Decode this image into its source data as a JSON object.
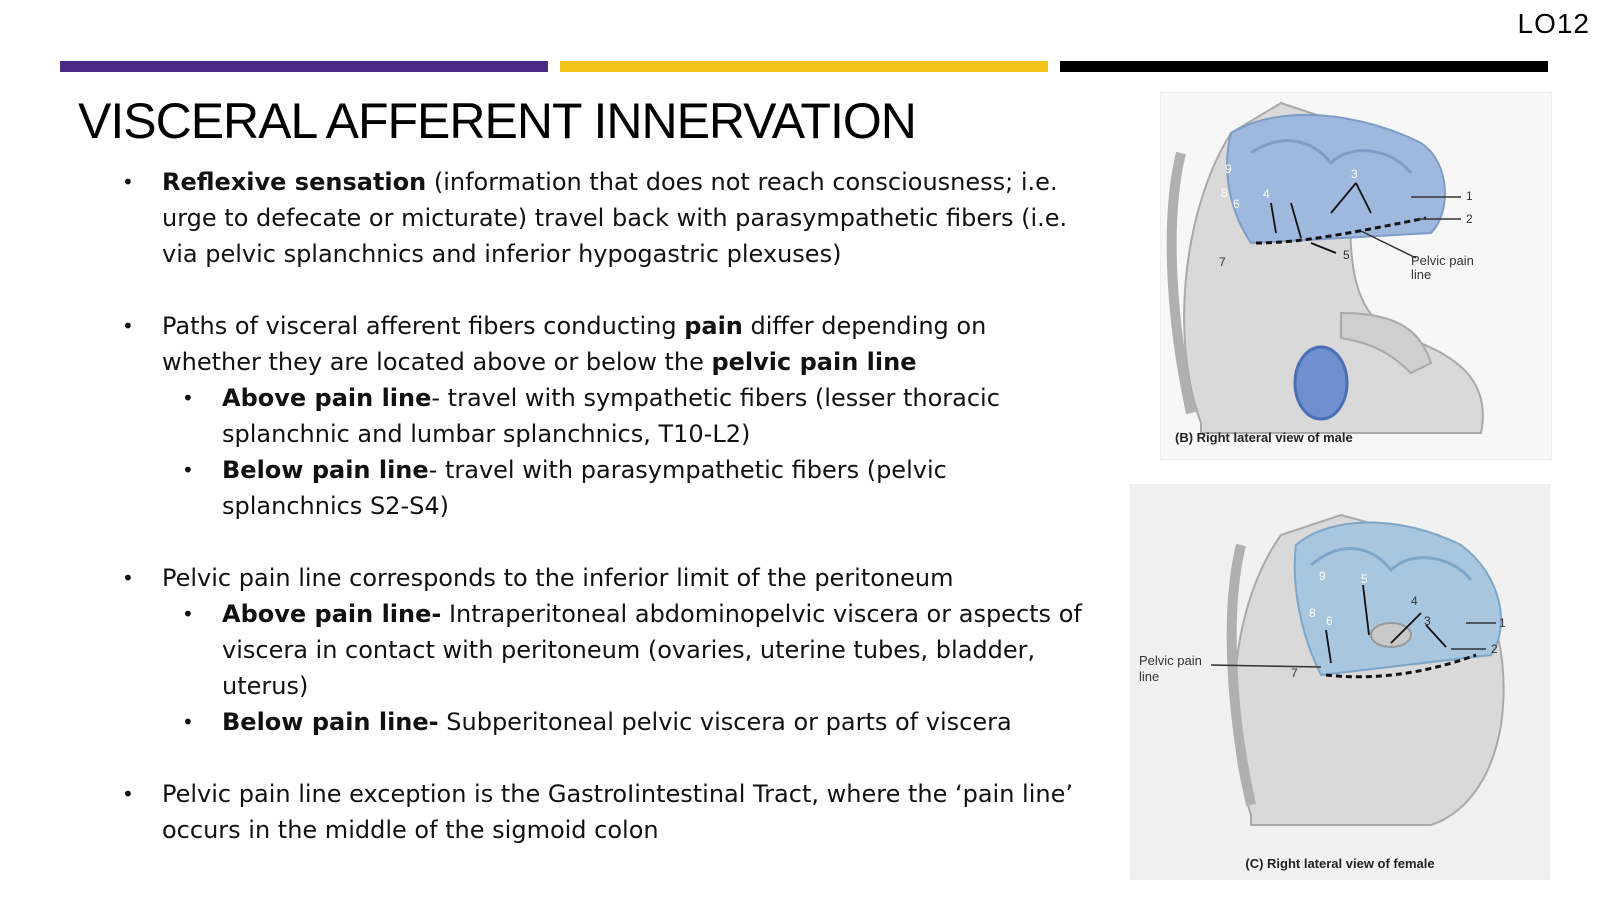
{
  "slide": {
    "lo_tag": "LO12",
    "title": "VISCERAL AFFERENT INNERVATION",
    "colors": {
      "purple": "#4b2a86",
      "gold": "#f2c318",
      "black": "#000000"
    }
  },
  "bullets": {
    "b1": {
      "bold": "Reflexive sensation",
      "text": " (information that does not reach consciousness; i.e. urge to defecate or micturate) travel back with parasympathetic fibers (i.e. via pelvic splanchnics and inferior hypogastric plexuses)"
    },
    "b2": {
      "pre": "Paths of visceral afferent fibers conducting ",
      "bold1": "pain",
      "mid": " differ depending on whether they are located above or below the ",
      "bold2": "pelvic pain line",
      "sub1_bold": "Above pain line",
      "sub1_text": "- travel with sympathetic fibers (lesser thoracic splanchnic and lumbar splanchnics, T10-L2)",
      "sub2_bold": "Below pain line",
      "sub2_text": "- travel with parasympathetic fibers (pelvic splanchnics S2-S4)"
    },
    "b3": {
      "text": "Pelvic pain line corresponds to the inferior limit of the peritoneum",
      "sub1_bold": "Above pain line-",
      "sub1_text": " Intraperitoneal abdominopelvic viscera or aspects of viscera in contact with peritoneum (ovaries, uterine tubes, bladder, uterus)",
      "sub2_bold": "Below pain line-",
      "sub2_text": " Subperitoneal pelvic viscera or parts of viscera"
    },
    "b4": {
      "text": "Pelvic pain line exception is the GastroIintestinal Tract, where the ‘pain line’ occurs in the middle of the sigmoid colon"
    }
  },
  "figures": {
    "male": {
      "caption": "(B) Right lateral view of male",
      "label_line1": "Pelvic pain",
      "label_line2": "line",
      "numbers": [
        "9",
        "8",
        "6",
        "4",
        "3",
        "1",
        "2",
        "7",
        "5"
      ]
    },
    "female": {
      "caption": "(C) Right lateral view of female",
      "label_line1": "Pelvic pain",
      "label_line2": "line",
      "numbers": [
        "9",
        "5",
        "8",
        "6",
        "4",
        "3",
        "1",
        "2",
        "7"
      ]
    }
  }
}
